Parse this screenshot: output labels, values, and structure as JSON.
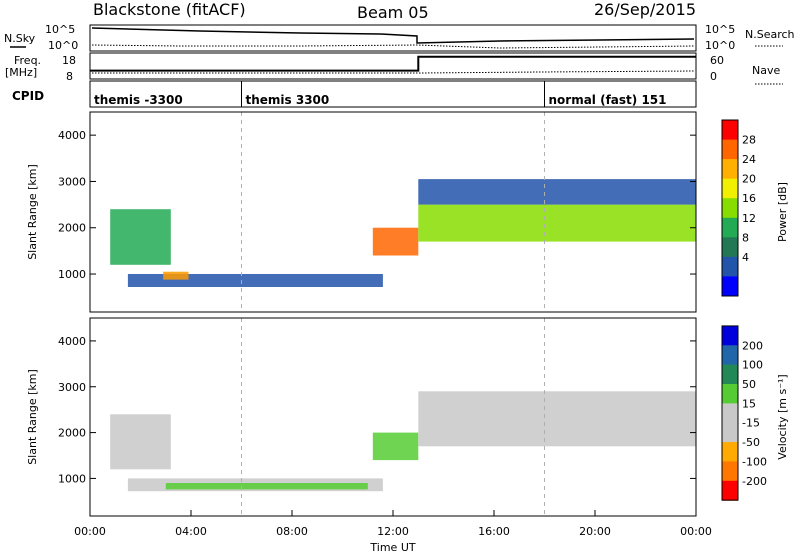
{
  "header": {
    "station": "Blackstone (fitACF)",
    "beam": "Beam 05",
    "date": "26/Sep/2015"
  },
  "status_panel": {
    "nsky_label": "N.Sky",
    "nsearch_label": "N.Search",
    "freq_label_line1": "Freq.",
    "freq_label_line2": "[MHz]",
    "nave_label": "Nave",
    "cpid_label": "CPID",
    "noise_ticks_left": [
      "10^5",
      "10^0"
    ],
    "noise_ticks_right": [
      "10^5",
      "10^0"
    ],
    "freq_ticks": [
      "18",
      "8"
    ],
    "nave_ticks": [
      "60",
      "0"
    ],
    "freq_values": [
      {
        "t": 0.0,
        "v": 10.9
      },
      {
        "t": 13.0,
        "v": 10.9
      },
      {
        "t": 13.0,
        "v": 17.2
      },
      {
        "t": 24.0,
        "v": 17.2
      }
    ],
    "cpid_segments": [
      {
        "start": 0.0,
        "label": "themis -3300"
      },
      {
        "start": 6.0,
        "label": "themis 3300"
      },
      {
        "start": 18.0,
        "label": "normal (fast) 151"
      }
    ]
  },
  "chart_data": [
    {
      "type": "heatmap",
      "name": "power",
      "ylabel": "Slant Range [km]",
      "xlabel": "",
      "xlim": [
        0,
        24
      ],
      "ylim": [
        180,
        4500
      ],
      "yticks": [
        "1000",
        "2000",
        "3000",
        "4000"
      ],
      "colorbar": {
        "label": "Power [dB]",
        "ticks": [
          "28",
          "24",
          "20",
          "16",
          "12",
          "8",
          "4"
        ],
        "colors": [
          "#ff0000",
          "#ff6600",
          "#ffb000",
          "#f0f000",
          "#88dd00",
          "#22aa55",
          "#227755",
          "#2255aa",
          "#0000ff"
        ]
      },
      "bands": [
        {
          "x0": 0.8,
          "x1": 3.2,
          "y0": 1200,
          "y1": 2400,
          "color": "#22aa55"
        },
        {
          "x0": 1.5,
          "x1": 11.6,
          "y0": 720,
          "y1": 1000,
          "color": "#2255aa"
        },
        {
          "x0": 2.9,
          "x1": 3.9,
          "y0": 880,
          "y1": 1050,
          "color": "#ff9900"
        },
        {
          "x0": 11.2,
          "x1": 13.0,
          "y0": 1400,
          "y1": 2000,
          "color": "#ff6600"
        },
        {
          "x0": 13.0,
          "x1": 24.0,
          "y0": 1700,
          "y1": 2500,
          "color": "#88dd00"
        },
        {
          "x0": 13.0,
          "x1": 24.0,
          "y0": 2500,
          "y1": 3050,
          "color": "#2255aa"
        }
      ]
    },
    {
      "type": "heatmap",
      "name": "velocity",
      "ylabel": "Slant Range [km]",
      "xlabel": "Time UT",
      "xlim": [
        0,
        24
      ],
      "ylim": [
        180,
        4500
      ],
      "yticks": [
        "1000",
        "2000",
        "3000",
        "4000"
      ],
      "xticks": [
        "00:00",
        "04:00",
        "08:00",
        "12:00",
        "16:00",
        "20:00",
        "00:00"
      ],
      "colorbar": {
        "label": "Velocity [m s⁻¹]",
        "ticks": [
          "200",
          "100",
          "50",
          "15",
          "-15",
          "-50",
          "-100",
          "-200"
        ],
        "colors": [
          "#0000dd",
          "#2266aa",
          "#228855",
          "#55cc33",
          "#c8c8c8",
          "#c8c8c8",
          "#ffaa00",
          "#ff7700",
          "#ff0000"
        ]
      },
      "bands": [
        {
          "x0": 0.8,
          "x1": 3.2,
          "y0": 1200,
          "y1": 2400,
          "color": "#c8c8c8"
        },
        {
          "x0": 1.5,
          "x1": 11.6,
          "y0": 720,
          "y1": 1000,
          "color": "#c8c8c8"
        },
        {
          "x0": 3.0,
          "x1": 11.0,
          "y0": 760,
          "y1": 900,
          "color": "#55cc33"
        },
        {
          "x0": 11.2,
          "x1": 13.0,
          "y0": 1400,
          "y1": 2000,
          "color": "#55cc33"
        },
        {
          "x0": 13.0,
          "x1": 24.0,
          "y0": 1700,
          "y1": 2900,
          "color": "#c8c8c8"
        }
      ]
    }
  ]
}
